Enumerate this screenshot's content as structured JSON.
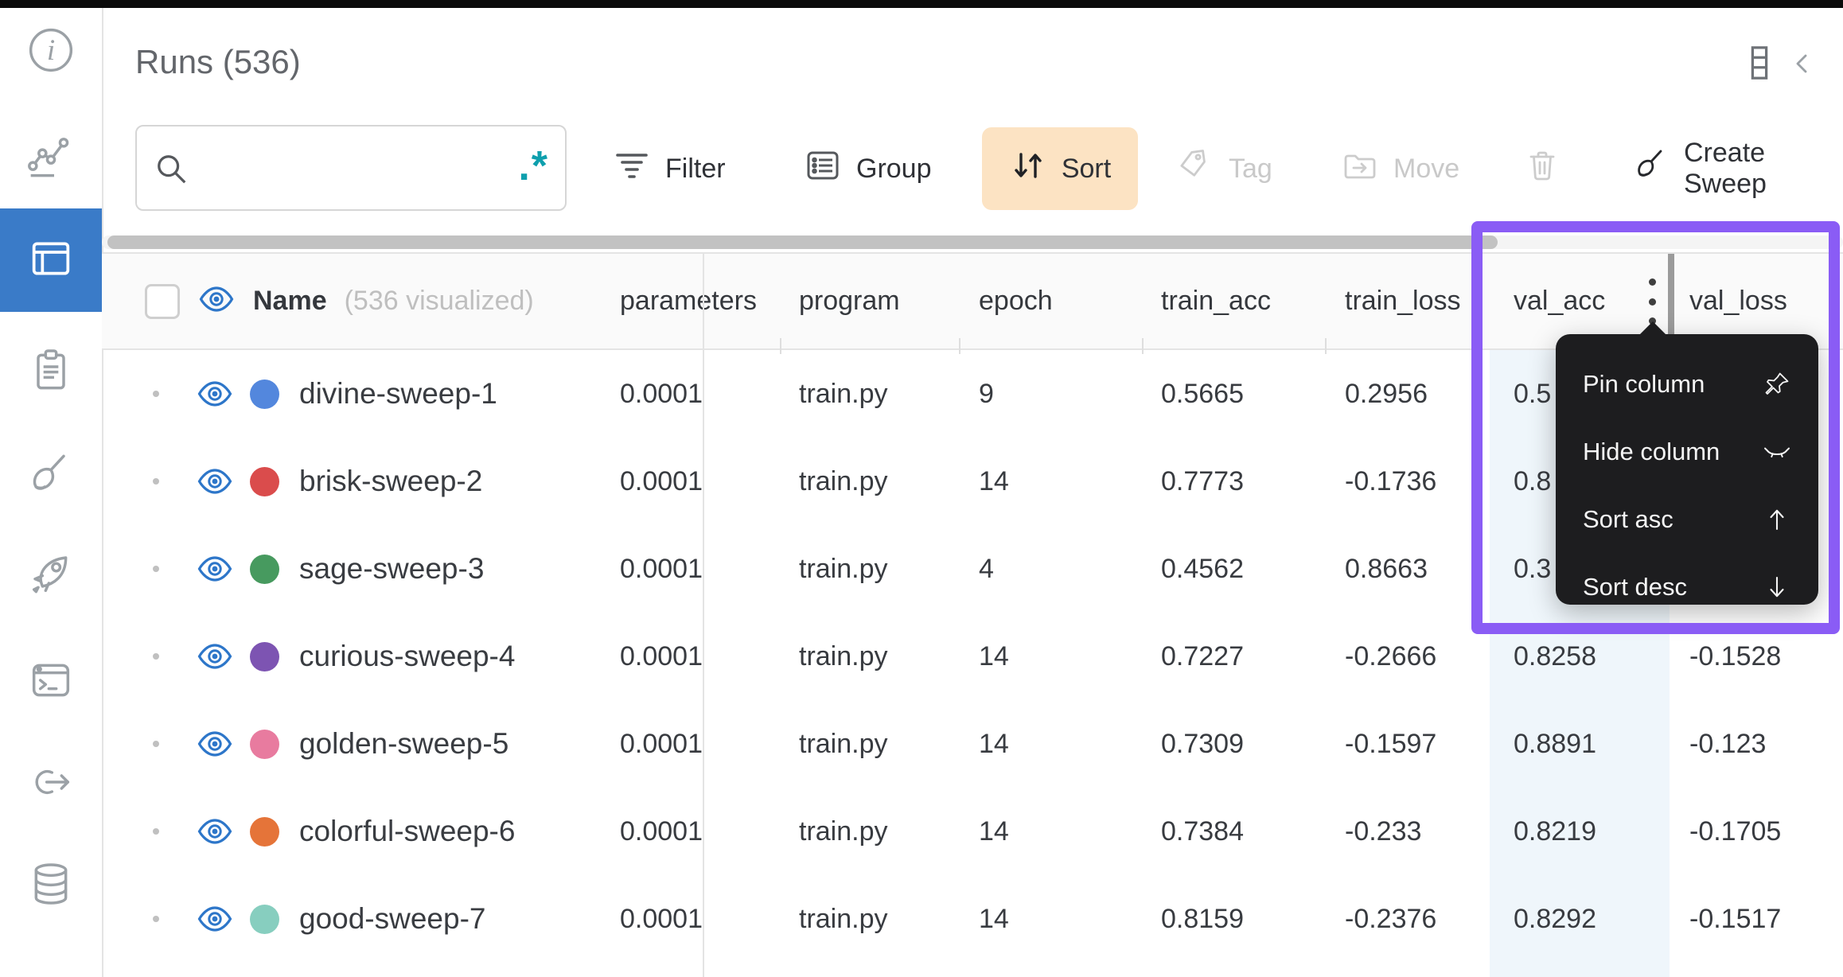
{
  "header": {
    "title": "Runs (536)"
  },
  "toolbar": {
    "search": {
      "value": "",
      "placeholder": ""
    },
    "filter_label": "Filter",
    "group_label": "Group",
    "sort_label": "Sort",
    "tag_label": "Tag",
    "move_label": "Move",
    "create_sweep_label": "Create Sweep"
  },
  "sidebar": {
    "items": [
      {
        "icon": "info-icon",
        "selected": false
      },
      {
        "icon": "line-chart-icon",
        "selected": false
      },
      {
        "icon": "table-icon",
        "selected": true
      },
      {
        "icon": "clipboard-icon",
        "selected": false
      },
      {
        "icon": "broom-icon",
        "selected": false
      },
      {
        "icon": "rocket-icon",
        "selected": false
      },
      {
        "icon": "terminal-icon",
        "selected": false
      },
      {
        "icon": "link-arrow-icon",
        "selected": false
      },
      {
        "icon": "database-icon",
        "selected": false
      }
    ]
  },
  "table": {
    "name_column": {
      "label": "Name",
      "sub": "(536 visualized)"
    },
    "columns": [
      {
        "key": "parameters",
        "label": "parameters"
      },
      {
        "key": "program",
        "label": "program"
      },
      {
        "key": "epoch",
        "label": "epoch"
      },
      {
        "key": "train_acc",
        "label": "train_acc"
      },
      {
        "key": "train_loss",
        "label": "train_loss"
      },
      {
        "key": "val_acc",
        "label": "val_acc"
      },
      {
        "key": "val_loss",
        "label": "val_loss"
      }
    ],
    "rows": [
      {
        "name": "divine-sweep-1",
        "color": "#5387DD",
        "parameters": "0.0001",
        "program": "train.py",
        "epoch": "9",
        "train_acc": "0.5665",
        "train_loss": "0.2956",
        "val_acc": "0.5",
        "val_loss": ""
      },
      {
        "name": "brisk-sweep-2",
        "color": "#DA4C4C",
        "parameters": "0.0001",
        "program": "train.py",
        "epoch": "14",
        "train_acc": "0.7773",
        "train_loss": "-0.1736",
        "val_acc": "0.8",
        "val_loss": ""
      },
      {
        "name": "sage-sweep-3",
        "color": "#479A5F",
        "parameters": "0.0001",
        "program": "train.py",
        "epoch": "4",
        "train_acc": "0.4562",
        "train_loss": "0.8663",
        "val_acc": "0.3",
        "val_loss": ""
      },
      {
        "name": "curious-sweep-4",
        "color": "#7D54B2",
        "parameters": "0.0001",
        "program": "train.py",
        "epoch": "14",
        "train_acc": "0.7227",
        "train_loss": "-0.2666",
        "val_acc": "0.8258",
        "val_loss": "-0.1528"
      },
      {
        "name": "golden-sweep-5",
        "color": "#E87B9F",
        "parameters": "0.0001",
        "program": "train.py",
        "epoch": "14",
        "train_acc": "0.7309",
        "train_loss": "-0.1597",
        "val_acc": "0.8891",
        "val_loss": "-0.123"
      },
      {
        "name": "colorful-sweep-6",
        "color": "#E57439",
        "parameters": "0.0001",
        "program": "train.py",
        "epoch": "14",
        "train_acc": "0.7384",
        "train_loss": "-0.233",
        "val_acc": "0.8219",
        "val_loss": "-0.1705"
      },
      {
        "name": "good-sweep-7",
        "color": "#87CEBF",
        "parameters": "0.0001",
        "program": "train.py",
        "epoch": "14",
        "train_acc": "0.8159",
        "train_loss": "-0.2376",
        "val_acc": "0.8292",
        "val_loss": "-0.1517"
      }
    ]
  },
  "context_menu": {
    "target_column": "val_acc",
    "items": [
      {
        "label": "Pin column",
        "icon": "pin-icon"
      },
      {
        "label": "Hide column",
        "icon": "eye-closed-icon"
      },
      {
        "label": "Sort asc",
        "icon": "arrow-up-icon"
      },
      {
        "label": "Sort desc",
        "icon": "arrow-down-icon"
      }
    ]
  },
  "colors": {
    "accent_blue": "#3a7bc8",
    "eye_blue": "#2d76c9",
    "sort_pill_bg": "#fce3c3",
    "purple_highlight": "#8a5cf5",
    "val_acc_col_bg": "#eff6fb",
    "menu_bg": "#1d1d1f",
    "regex_teal": "#0e9fad",
    "scroll_thumb": "#c2c2c2"
  }
}
